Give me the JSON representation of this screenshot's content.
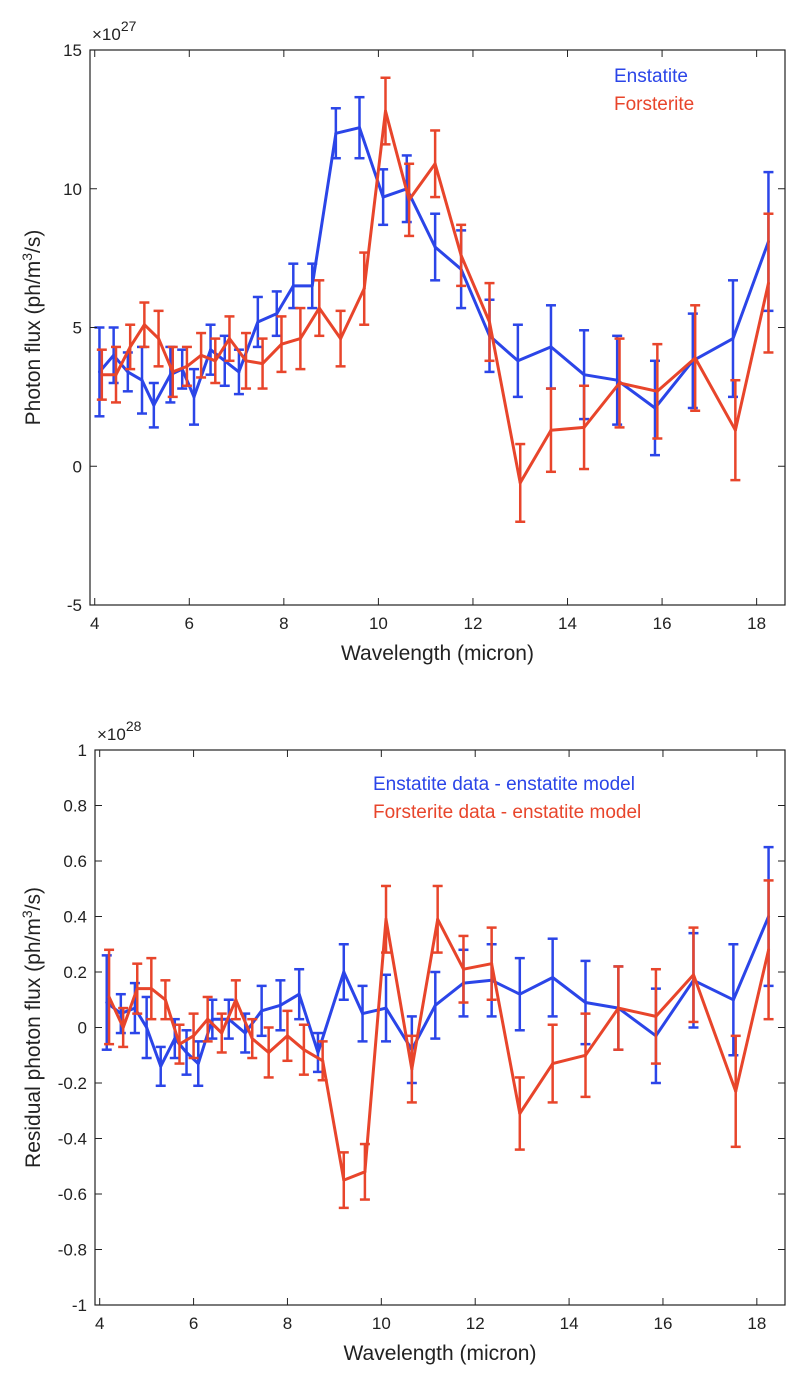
{
  "chart_data": [
    {
      "type": "line",
      "title": "",
      "xlabel": "Wavelength (micron)",
      "ylabel": "Photon flux (ph/m³/s)",
      "ylabel_parts": [
        "Photon flux (ph/m",
        "3",
        "/s)"
      ],
      "exponent_label": "×10",
      "exponent_power": "27",
      "xlim": [
        3.9,
        18.6
      ],
      "ylim": [
        -5,
        15
      ],
      "xticks": [
        4,
        6,
        8,
        10,
        12,
        14,
        16,
        18
      ],
      "yticks": [
        -5,
        0,
        5,
        10,
        15
      ],
      "legend_position": "top-right",
      "series": [
        {
          "name": "Enstatite",
          "color": "#2b45e8",
          "x": [
            4.1,
            4.4,
            4.7,
            5.0,
            5.25,
            5.6,
            5.85,
            6.1,
            6.45,
            6.75,
            7.05,
            7.45,
            7.85,
            8.2,
            8.6,
            9.1,
            9.6,
            10.1,
            10.6,
            11.2,
            11.75,
            12.35,
            12.95,
            13.65,
            14.35,
            15.05,
            15.85,
            16.65,
            17.5,
            18.25
          ],
          "values": [
            3.4,
            4.0,
            3.4,
            3.1,
            2.2,
            3.3,
            3.5,
            2.5,
            4.2,
            3.8,
            3.4,
            5.2,
            5.5,
            6.5,
            6.5,
            12.0,
            12.2,
            9.7,
            10.0,
            7.9,
            7.1,
            4.7,
            3.8,
            4.3,
            3.3,
            3.1,
            2.1,
            3.8,
            4.6,
            8.1
          ],
          "errors": [
            1.6,
            1.0,
            0.7,
            1.2,
            0.8,
            1.0,
            0.7,
            1.0,
            0.9,
            0.9,
            0.8,
            0.9,
            0.8,
            0.8,
            0.8,
            0.9,
            1.1,
            1.0,
            1.2,
            1.2,
            1.4,
            1.3,
            1.3,
            1.5,
            1.6,
            1.6,
            1.7,
            1.7,
            2.1,
            2.5
          ]
        },
        {
          "name": "Forsterite",
          "color": "#e8452b",
          "x": [
            4.15,
            4.45,
            4.75,
            5.05,
            5.35,
            5.65,
            5.95,
            6.25,
            6.55,
            6.85,
            7.2,
            7.55,
            7.95,
            8.35,
            8.75,
            9.2,
            9.7,
            10.15,
            10.65,
            11.2,
            11.75,
            12.35,
            13.0,
            13.65,
            14.35,
            15.1,
            15.9,
            16.7,
            17.55,
            18.25
          ],
          "values": [
            3.3,
            3.3,
            4.3,
            5.1,
            4.6,
            3.4,
            3.6,
            4.0,
            3.8,
            4.6,
            3.8,
            3.7,
            4.4,
            4.6,
            5.7,
            4.6,
            6.4,
            12.8,
            9.6,
            10.9,
            7.6,
            5.2,
            -0.6,
            1.3,
            1.4,
            3.0,
            2.7,
            3.9,
            1.3,
            6.6
          ],
          "errors": [
            0.9,
            1.0,
            0.8,
            0.8,
            1.0,
            0.9,
            0.7,
            0.8,
            0.8,
            0.8,
            1.0,
            0.9,
            1.0,
            1.1,
            1.0,
            1.0,
            1.3,
            1.2,
            1.3,
            1.2,
            1.1,
            1.4,
            1.4,
            1.5,
            1.5,
            1.6,
            1.7,
            1.9,
            1.8,
            2.5
          ]
        }
      ]
    },
    {
      "type": "line",
      "title": "",
      "xlabel": "Wavelength (micron)",
      "ylabel": "Residual photon flux (ph/m³/s)",
      "ylabel_parts": [
        "Residual photon flux (ph/m",
        "3",
        "/s)"
      ],
      "exponent_label": "×10",
      "exponent_power": "28",
      "xlim": [
        3.9,
        18.6
      ],
      "ylim": [
        -1,
        1
      ],
      "xticks": [
        4,
        6,
        8,
        10,
        12,
        14,
        16,
        18
      ],
      "yticks": [
        -1,
        -0.8,
        -0.6,
        -0.4,
        -0.2,
        0,
        0.2,
        0.4,
        0.6,
        0.8,
        1
      ],
      "legend_position": "top-right",
      "series": [
        {
          "name": "Enstatite data - enstatite model",
          "color": "#2b45e8",
          "x": [
            4.15,
            4.45,
            4.75,
            5.0,
            5.3,
            5.6,
            5.85,
            6.1,
            6.4,
            6.75,
            7.1,
            7.45,
            7.85,
            8.25,
            8.65,
            9.2,
            9.6,
            10.1,
            10.65,
            11.15,
            11.75,
            12.35,
            12.95,
            13.65,
            14.35,
            15.05,
            15.85,
            16.65,
            17.5,
            18.25
          ],
          "values": [
            0.09,
            0.05,
            0.07,
            0.0,
            -0.14,
            -0.04,
            -0.09,
            -0.13,
            0.03,
            0.03,
            -0.02,
            0.06,
            0.08,
            0.12,
            -0.09,
            0.2,
            0.05,
            0.07,
            -0.08,
            0.08,
            0.16,
            0.17,
            0.12,
            0.18,
            0.09,
            0.07,
            -0.03,
            0.17,
            0.1,
            0.4
          ]
        },
        {
          "name": "Forsterite data - enstatite model",
          "color": "#e8452b",
          "x": [
            4.2,
            4.5,
            4.8,
            5.1,
            5.4,
            5.7,
            6.0,
            6.3,
            6.6,
            6.9,
            7.25,
            7.6,
            8.0,
            8.35,
            8.75,
            9.2,
            9.65,
            10.1,
            10.65,
            11.2,
            11.75,
            12.35,
            12.95,
            13.65,
            14.35,
            15.05,
            15.85,
            16.65,
            17.55,
            18.25
          ],
          "values": [
            0.11,
            0.0,
            0.14,
            0.14,
            0.1,
            -0.06,
            -0.03,
            0.03,
            -0.02,
            0.1,
            -0.04,
            -0.09,
            -0.03,
            -0.08,
            -0.12,
            -0.55,
            -0.52,
            0.39,
            -0.15,
            0.39,
            0.21,
            0.23,
            -0.31,
            -0.13,
            -0.1,
            0.07,
            0.04,
            0.19,
            -0.23,
            0.28
          ]
        }
      ]
    }
  ]
}
